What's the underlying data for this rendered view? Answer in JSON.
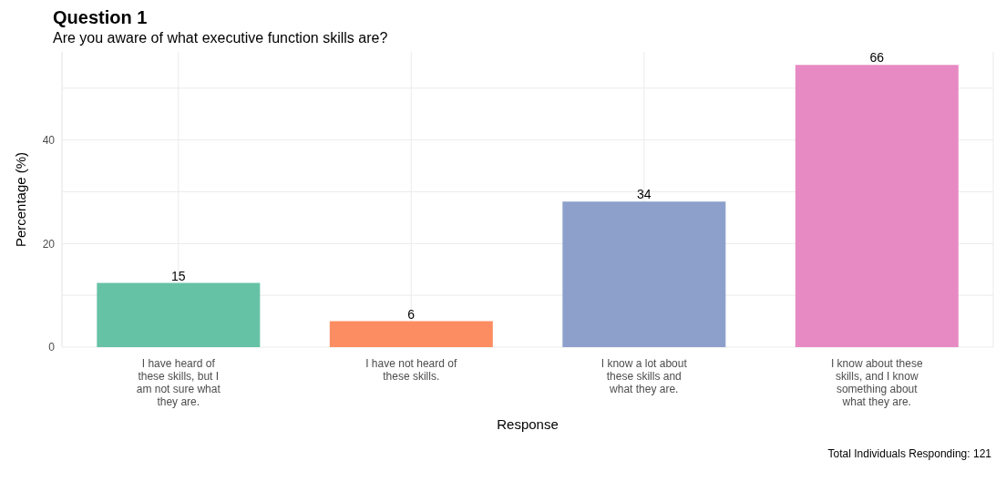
{
  "chart_data": {
    "type": "bar",
    "title": "Question 1",
    "subtitle": "Are you aware of what executive function skills are?",
    "xlabel": "Response",
    "ylabel": "Percentage (%)",
    "categories": [
      "I have heard of these skills, but I am not sure what they are.",
      "I have not heard of these skills.",
      "I know a lot about these skills and what they are.",
      "I know about these skills, and I know something about what they are."
    ],
    "values": [
      12.4,
      5.0,
      28.1,
      54.5
    ],
    "colors": [
      "#66c2a5",
      "#fc8d62",
      "#8da0cb",
      "#e78ac3"
    ],
    "ylim": [
      0,
      57
    ],
    "yticks": [
      0,
      {
        "value": 10,
        "label": null
      },
      20,
      {
        "value": 30,
        "label": null
      },
      40,
      {
        "value": 50,
        "label": null
      }
    ],
    "grid": true,
    "annotations": [
      {
        "text": "15",
        "x": "I have heard of these skills, but I am not sure what they are.",
        "y": 12.4
      },
      {
        "text": "6",
        "x": "I have not heard of these skills.",
        "y": 5.0
      },
      {
        "text": "34",
        "x": "I know a lot about these skills and what they are.",
        "y": 28.1
      },
      {
        "text": "66",
        "x": "I know about these skills, and I know something about what they are.",
        "y": 54.5
      },
      "Total Individuals Responding: 121"
    ]
  }
}
